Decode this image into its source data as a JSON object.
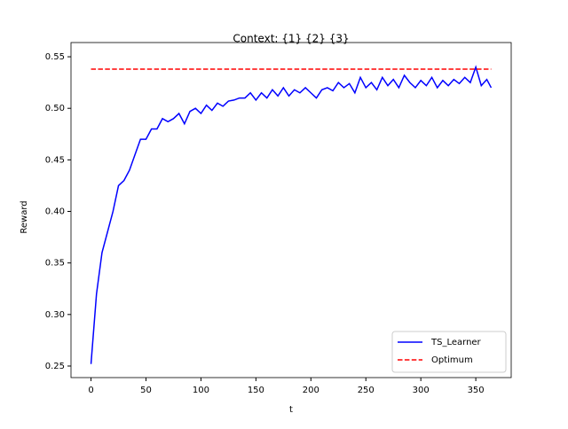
{
  "chart_data": {
    "type": "line",
    "title": "Context: {1} {2} {3}",
    "x_label": "t",
    "y_label": "Reward",
    "xlim": [
      -18.2,
      382.2
    ],
    "ylim": [
      0.2388,
      0.5638
    ],
    "xticks": [
      0,
      50,
      100,
      150,
      200,
      250,
      300,
      350
    ],
    "yticks": [
      0.25,
      {
        "value": 0.3,
        "label": "0.30"
      },
      0.35,
      {
        "value": 0.4,
        "label": "0.40"
      },
      0.45,
      {
        "value": 0.5,
        "label": "0.50"
      },
      0.55
    ],
    "legend": "lower right",
    "series": [
      {
        "name": "TS_Learner",
        "color": "#0000ff",
        "dash": "solid",
        "x": [
          0,
          5,
          10,
          15,
          20,
          25,
          30,
          35,
          40,
          45,
          50,
          55,
          60,
          65,
          70,
          75,
          80,
          85,
          90,
          95,
          100,
          105,
          110,
          115,
          120,
          125,
          130,
          135,
          140,
          145,
          150,
          155,
          160,
          165,
          170,
          175,
          180,
          185,
          190,
          195,
          200,
          205,
          210,
          215,
          220,
          225,
          230,
          235,
          240,
          245,
          250,
          255,
          260,
          265,
          270,
          275,
          280,
          285,
          290,
          295,
          300,
          305,
          310,
          315,
          320,
          325,
          330,
          335,
          340,
          345,
          350,
          355,
          360,
          364
        ],
        "values": [
          0.252,
          0.32,
          0.36,
          0.38,
          0.4,
          0.425,
          0.43,
          0.44,
          0.455,
          0.47,
          0.47,
          0.48,
          0.48,
          0.49,
          0.487,
          0.49,
          0.495,
          0.485,
          0.497,
          0.5,
          0.495,
          0.503,
          0.498,
          0.505,
          0.502,
          0.507,
          0.508,
          0.51,
          0.51,
          0.515,
          0.508,
          0.515,
          0.51,
          0.518,
          0.512,
          0.52,
          0.512,
          0.518,
          0.515,
          0.52,
          0.515,
          0.51,
          0.518,
          0.52,
          0.517,
          0.525,
          0.52,
          0.524,
          0.515,
          0.53,
          0.52,
          0.525,
          0.518,
          0.53,
          0.522,
          0.528,
          0.52,
          0.532,
          0.525,
          0.52,
          0.527,
          0.522,
          0.53,
          0.52,
          0.527,
          0.522,
          0.528,
          0.524,
          0.53,
          0.525,
          0.54,
          0.522,
          0.528,
          0.52
        ]
      },
      {
        "name": "Optimum",
        "color": "#ff0000",
        "dash": "dashed",
        "x": [
          0,
          364
        ],
        "values": [
          0.538,
          0.538
        ]
      }
    ]
  }
}
